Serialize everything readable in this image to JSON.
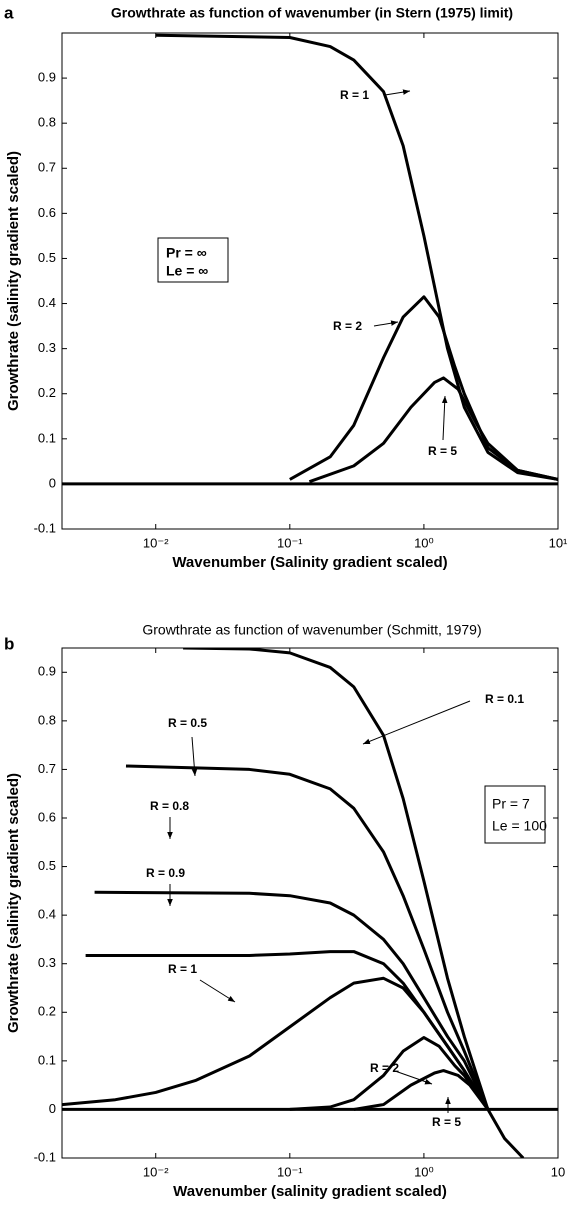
{
  "chart_data": [
    {
      "type": "line",
      "panel": "a",
      "title": "Growthrate as function of wavenumber (in Stern (1975) limit)",
      "xlabel": "Wavenumber (Salinity gradient scaled)",
      "ylabel": "Growthrate (salinity gradient scaled)",
      "xscale": "log",
      "xlim": [
        0.002,
        10
      ],
      "ylim": [
        -0.1,
        1.0
      ],
      "xticks": [
        {
          "value": 0.01,
          "label": "10⁻²"
        },
        {
          "value": 0.1,
          "label": "10⁻¹"
        },
        {
          "value": 1,
          "label": "10⁰"
        },
        {
          "value": 10,
          "label": "10¹"
        }
      ],
      "yticks": [
        -0.1,
        0,
        0.1,
        0.2,
        0.3,
        0.4,
        0.5,
        0.6,
        0.7,
        0.8,
        0.9
      ],
      "bold_title": true,
      "series": [
        {
          "color": "#000000",
          "x": [
            0.01,
            0.1,
            0.2,
            0.3,
            0.5,
            0.7,
            1,
            1.5,
            2,
            3,
            5,
            10
          ],
          "values": [
            0.995,
            0.99,
            0.97,
            0.94,
            0.87,
            0.75,
            0.55,
            0.3,
            0.17,
            0.07,
            0.025,
            0.01
          ]
        },
        {
          "color": "#000000",
          "x": [
            0.1,
            0.2,
            0.3,
            0.5,
            0.7,
            1,
            1.3,
            1.7,
            2,
            3,
            5,
            10
          ],
          "values": [
            0.01,
            0.06,
            0.13,
            0.28,
            0.37,
            0.415,
            0.37,
            0.26,
            0.2,
            0.08,
            0.03,
            0.01
          ]
        },
        {
          "color": "#000000",
          "x": [
            0.14,
            0.3,
            0.5,
            0.8,
            1.2,
            1.4,
            1.8,
            2.5,
            3,
            5,
            10
          ],
          "values": [
            0.005,
            0.04,
            0.09,
            0.17,
            0.225,
            0.235,
            0.21,
            0.13,
            0.09,
            0.03,
            0.01
          ]
        },
        {
          "color": "#000000",
          "x": [
            0.002,
            10
          ],
          "values": [
            0,
            0
          ]
        }
      ],
      "annotations": [
        "R = 1",
        "R = 2",
        "R = 5"
      ],
      "legend_box": [
        "Pr = ∞",
        "Le = ∞"
      ]
    },
    {
      "type": "line",
      "panel": "b",
      "title": "Growthrate as function of wavenumber (Schmitt, 1979)",
      "xlabel": "Wavenumber (salinity gradient scaled)",
      "ylabel": "Growthrate (salinity gradient scaled)",
      "xscale": "log",
      "xlim": [
        0.002,
        10
      ],
      "ylim": [
        -0.1,
        0.95
      ],
      "xticks": [
        {
          "value": 0.01,
          "label": "10⁻²"
        },
        {
          "value": 0.1,
          "label": "10⁻¹"
        },
        {
          "value": 1,
          "label": "10⁰"
        },
        {
          "value": 10,
          "label": "10"
        }
      ],
      "yticks": [
        -0.1,
        0,
        0.1,
        0.2,
        0.3,
        0.4,
        0.5,
        0.6,
        0.7,
        0.8,
        0.9
      ],
      "bold_title": false,
      "series": [
        {
          "color": "#000000",
          "x": [
            0.016,
            0.05,
            0.1,
            0.2,
            0.3,
            0.5,
            0.7,
            1,
            1.5,
            2,
            3,
            4,
            5.5
          ],
          "values": [
            0.95,
            0.948,
            0.94,
            0.91,
            0.87,
            0.77,
            0.64,
            0.47,
            0.27,
            0.15,
            0.0,
            -0.06,
            -0.1
          ]
        },
        {
          "color": "#000000",
          "x": [
            0.006,
            0.05,
            0.1,
            0.2,
            0.3,
            0.5,
            0.7,
            1,
            1.5,
            2,
            3
          ],
          "values": [
            0.707,
            0.7,
            0.69,
            0.66,
            0.62,
            0.53,
            0.44,
            0.33,
            0.2,
            0.12,
            0.0
          ]
        },
        {
          "color": "#000000",
          "x": [
            0.0035,
            0.05,
            0.1,
            0.2,
            0.3,
            0.5,
            0.7,
            1,
            1.5,
            2,
            3
          ],
          "values": [
            0.447,
            0.445,
            0.44,
            0.425,
            0.4,
            0.35,
            0.3,
            0.23,
            0.15,
            0.1,
            0.0
          ]
        },
        {
          "color": "#000000",
          "x": [
            0.003,
            0.05,
            0.1,
            0.2,
            0.3,
            0.5,
            0.7,
            1,
            1.5,
            2,
            3
          ],
          "values": [
            0.317,
            0.317,
            0.32,
            0.325,
            0.325,
            0.3,
            0.26,
            0.2,
            0.13,
            0.08,
            0.0
          ]
        },
        {
          "color": "#000000",
          "x": [
            0.002,
            0.005,
            0.01,
            0.02,
            0.05,
            0.1,
            0.2,
            0.3,
            0.5,
            0.7,
            1,
            1.5,
            2,
            3
          ],
          "values": [
            0.01,
            0.02,
            0.035,
            0.06,
            0.11,
            0.17,
            0.23,
            0.26,
            0.27,
            0.25,
            0.2,
            0.13,
            0.08,
            0.0
          ]
        },
        {
          "color": "#000000",
          "x": [
            0.1,
            0.2,
            0.3,
            0.5,
            0.7,
            1,
            1.3,
            1.7,
            2,
            3
          ],
          "values": [
            0.0,
            0.005,
            0.02,
            0.07,
            0.12,
            0.148,
            0.13,
            0.09,
            0.07,
            0.0
          ]
        },
        {
          "color": "#000000",
          "x": [
            0.3,
            0.5,
            0.8,
            1.2,
            1.4,
            1.8,
            2.2,
            3
          ],
          "values": [
            0.0,
            0.01,
            0.05,
            0.075,
            0.08,
            0.07,
            0.05,
            0.0
          ]
        },
        {
          "color": "#000000",
          "x": [
            0.002,
            10
          ],
          "values": [
            0,
            0
          ]
        }
      ],
      "annotations": [
        "R = 0.1",
        "R = 0.5",
        "R = 0.8",
        "R = 0.9",
        "R = 1",
        "R = 2",
        "R = 5"
      ],
      "legend_box": [
        "Pr = 7",
        "Le = 100"
      ]
    }
  ]
}
